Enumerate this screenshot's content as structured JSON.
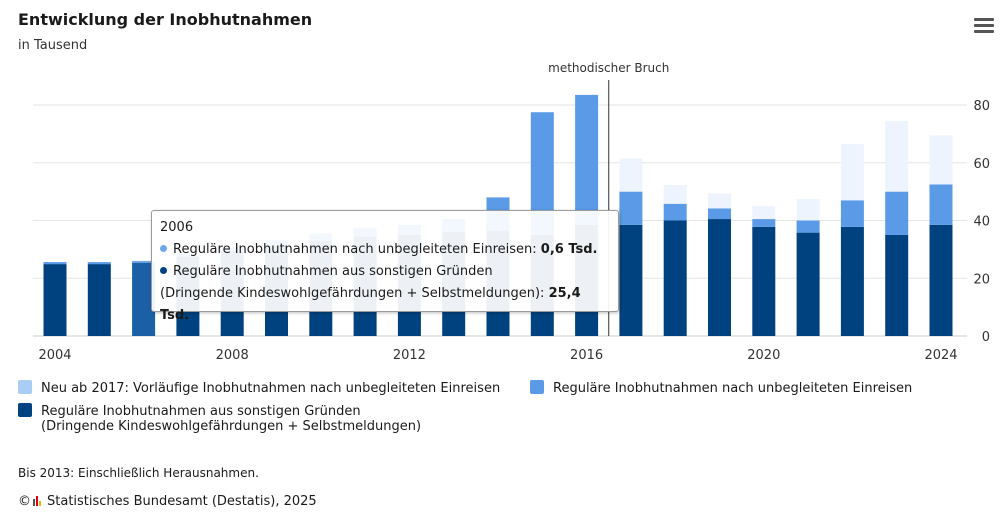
{
  "header": {
    "title": "Entwicklung der Inobhutnahmen",
    "subtitle": "in Tausend"
  },
  "menu_icon": "hamburger-menu-icon",
  "colors": {
    "neu": "#eef4fd",
    "regulaer_unbegleitet": "#5a9ae6",
    "regulaer_unbegleitet_highlight": "#6fa7ea",
    "sonstige": "#00427f",
    "sonstige_highlight": "#1b5fa6",
    "grid": "#e6e6e6",
    "bruch_line": "#333333"
  },
  "chart_data": {
    "type": "bar",
    "stacked": true,
    "x": [
      2004,
      2005,
      2006,
      2007,
      2008,
      2009,
      2010,
      2011,
      2012,
      2013,
      2014,
      2015,
      2016,
      2017,
      2018,
      2019,
      2020,
      2021,
      2022,
      2023,
      2024
    ],
    "series": [
      {
        "name": "Reguläre Inobhutnahmen aus sonstigen Gründen (Dringende Kindeswohlgefährdungen + Selbstmeldungen)",
        "values": [
          24.9,
          24.9,
          25.4,
          27.5,
          29.5,
          31.3,
          33.0,
          34.5,
          35.0,
          36.0,
          36.5,
          35.0,
          38.5,
          38.5,
          40.0,
          40.5,
          37.8,
          35.8,
          37.8,
          35.0,
          38.5
        ]
      },
      {
        "name": "Reguläre Inobhutnahmen nach unbegleiteten Einreisen",
        "values": [
          0.7,
          0.7,
          0.6,
          0.9,
          1.2,
          1.8,
          2.5,
          3.0,
          3.5,
          4.5,
          11.5,
          42.5,
          45.0,
          11.5,
          5.8,
          3.7,
          2.7,
          4.2,
          9.2,
          15.0,
          14.0
        ]
      },
      {
        "name": "Neu ab 2017: Vorläufige Inobhutnahmen nach unbegleiteten Einreisen",
        "values": [
          0,
          0,
          0,
          0,
          0,
          0,
          0,
          0,
          0,
          0,
          0,
          0,
          0,
          11.5,
          6.5,
          5.2,
          4.5,
          7.5,
          19.5,
          24.5,
          17.0
        ]
      }
    ],
    "ylim": [
      0,
      90
    ],
    "yticks": [
      "0",
      "20",
      "40",
      "60",
      "80"
    ],
    "ytick_values": [
      0,
      20,
      40,
      60,
      80
    ],
    "xticks": [
      "2004",
      "2008",
      "2012",
      "2016",
      "2020",
      "2024"
    ],
    "annotation": "methodischer Bruch",
    "annotation_after_year": 2016,
    "highlight_year": 2006,
    "legend_position": "bottom",
    "grid": true
  },
  "tooltip": {
    "year": "2006",
    "line1_label": "Reguläre Inobhutnahmen nach unbegleiteten Einreisen: ",
    "line1_value": "0,6 Tsd.",
    "line2_label": "Reguläre Inobhutnahmen aus sonstigen Gründen",
    "line3_label": "(Dringende Kindeswohlgefährdungen + Selbstmeldungen): ",
    "line3_value": "25,4 Tsd."
  },
  "legend": {
    "neu": "Neu ab 2017: Vorläufige Inobhutnahmen nach unbegleiteten Einreisen",
    "regulaer_unbegleitet": "Reguläre Inobhutnahmen nach unbegleiteten Einreisen",
    "sonstige_line1": "Reguläre Inobhutnahmen aus sonstigen Gründen",
    "sonstige_line2": "(Dringende Kindeswohlgefährdungen + Selbstmeldungen)"
  },
  "footer": {
    "note": "Bis 2013: Einschließlich Herausnahmen.",
    "credits": "Statistisches Bundesamt (Destatis), 2025",
    "copyright_symbol": "©",
    "logo_icon": "destatis-logo-icon"
  }
}
